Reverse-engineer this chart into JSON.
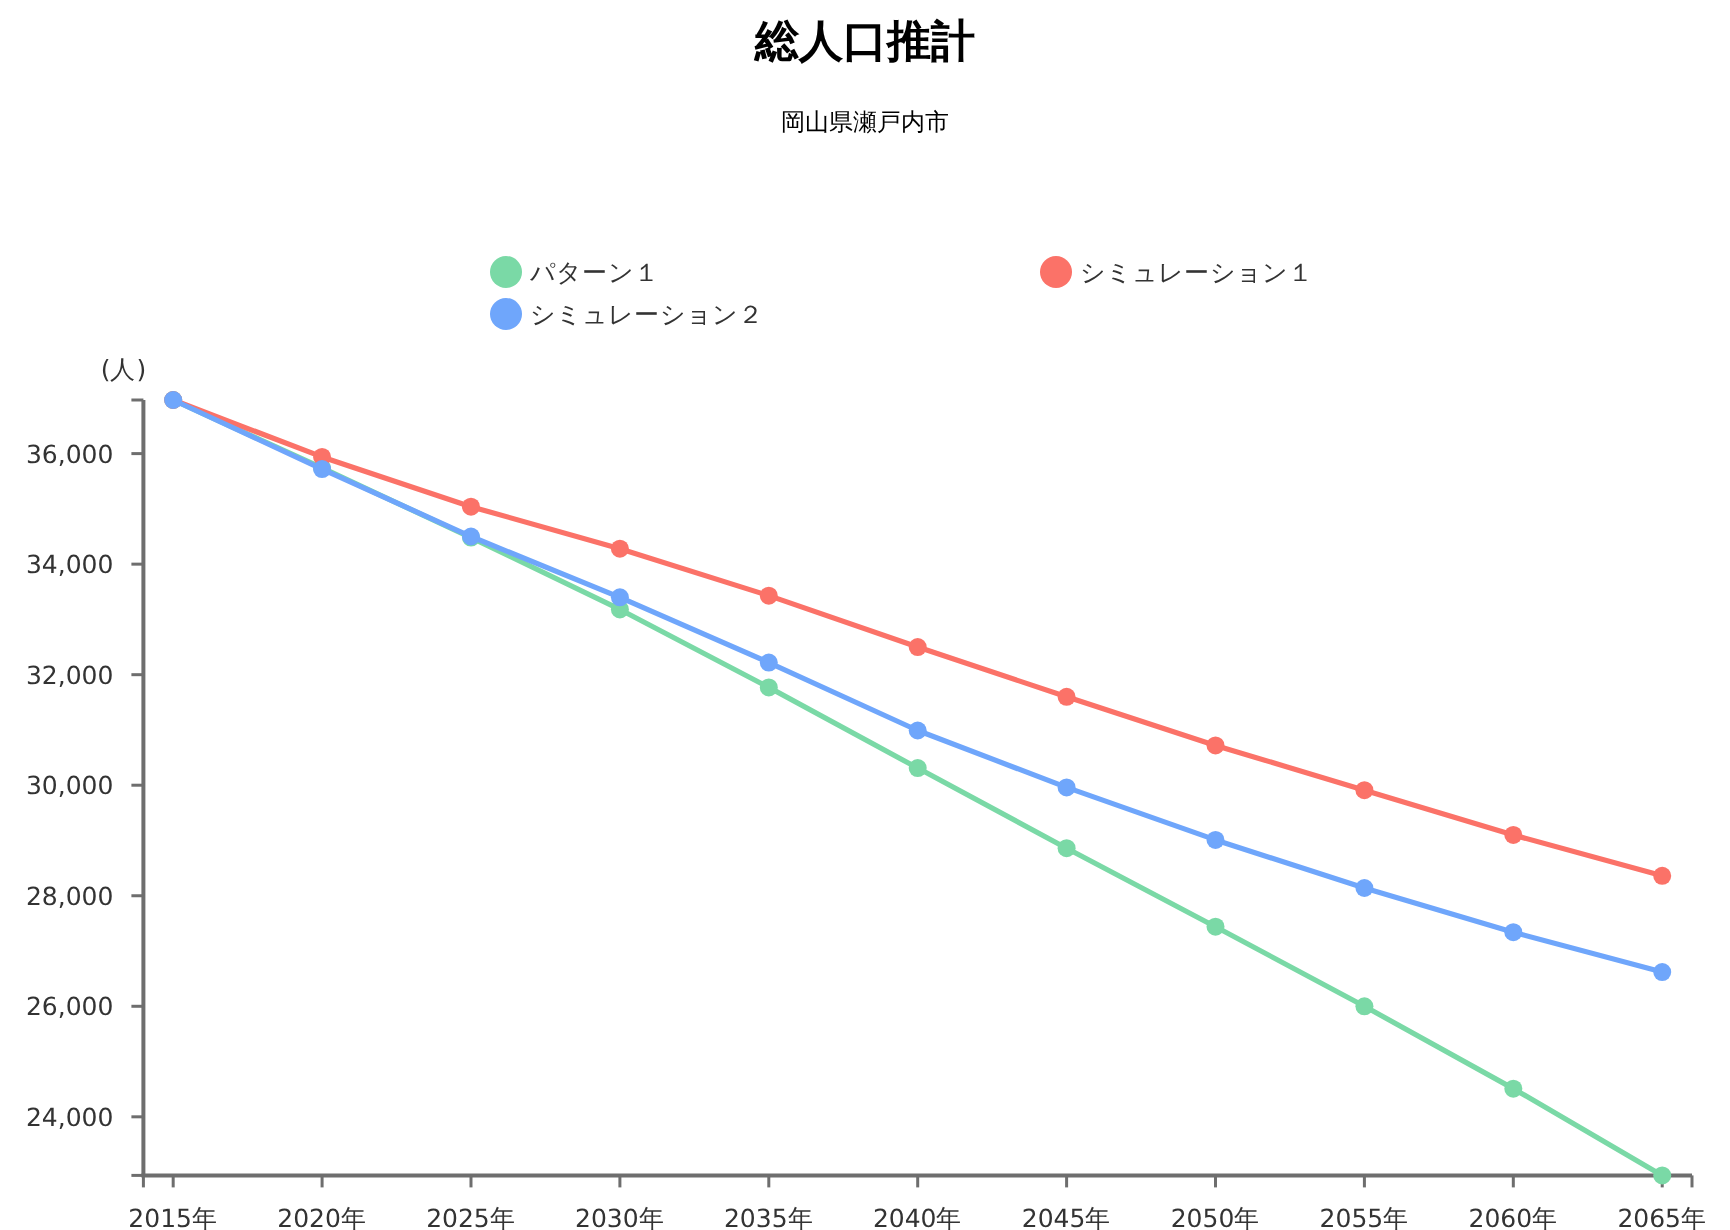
{
  "chart_data": {
    "type": "line",
    "title": "総人口推計",
    "subtitle": "岡山県瀬戸内市",
    "ylabel": "(人)",
    "categories": [
      "2015年",
      "2020年",
      "2025年",
      "2030年",
      "2035年",
      "2040年",
      "2045年",
      "2050年",
      "2055年",
      "2060年",
      "2065年"
    ],
    "series": [
      {
        "name": "パターン１",
        "color": "#7ad9a6",
        "values": [
          36970,
          35740,
          34480,
          33180,
          31770,
          30310,
          28860,
          27440,
          26000,
          24510,
          22940
        ]
      },
      {
        "name": "シミュレーション１",
        "color": "#fb7268",
        "values": [
          36970,
          35940,
          35040,
          34280,
          33430,
          32500,
          31600,
          30720,
          29910,
          29100,
          28360
        ]
      },
      {
        "name": "シミュレーション２",
        "color": "#6fa6fb",
        "values": [
          36970,
          35720,
          34500,
          33400,
          32220,
          30990,
          29960,
          29010,
          28140,
          27340,
          26620
        ]
      }
    ],
    "ylim": [
      22940,
      36970
    ],
    "yticks": [
      {
        "value": 22940,
        "label": null
      },
      {
        "value": 24000,
        "label": "24,000"
      },
      {
        "value": 26000,
        "label": "26,000"
      },
      {
        "value": 28000,
        "label": "28,000"
      },
      {
        "value": 30000,
        "label": "30,000"
      },
      {
        "value": 32000,
        "label": "32,000"
      },
      {
        "value": 34000,
        "label": "34,000"
      },
      {
        "value": 36000,
        "label": "36,000"
      },
      {
        "value": 36970,
        "label": null
      }
    ],
    "legend": "top",
    "marker": "circle",
    "line_style": "solid"
  }
}
